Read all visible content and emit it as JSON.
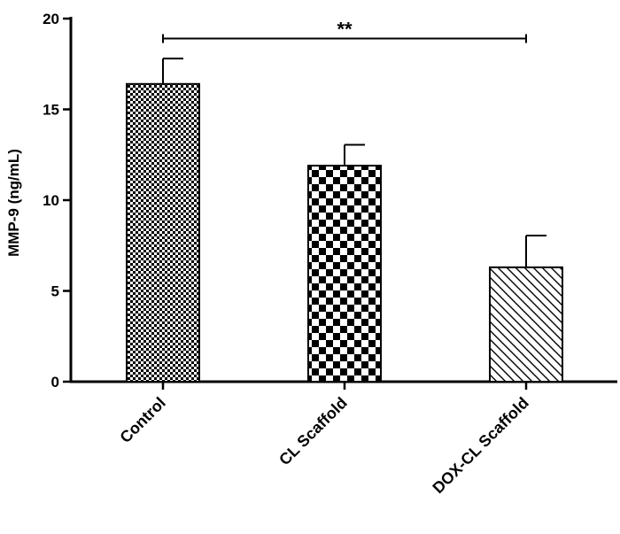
{
  "chart_data": {
    "type": "bar",
    "title": "",
    "xlabel": "",
    "ylabel": "MMP-9 (ng/mL)",
    "ylim": [
      0,
      20
    ],
    "yticks": [
      0,
      5,
      10,
      15,
      20
    ],
    "grid": false,
    "categories": [
      "Control",
      "CL Scaffold",
      "DOX-CL Scaffold"
    ],
    "values": [
      16.4,
      11.9,
      6.3
    ],
    "errors": [
      1.4,
      1.15,
      1.75
    ],
    "patterns": [
      "fine-checker",
      "coarse-checker",
      "diagonal-hatch"
    ],
    "significance": {
      "from": "Control",
      "to": "DOX-CL Scaffold",
      "label": "**",
      "y": 18.9
    }
  }
}
